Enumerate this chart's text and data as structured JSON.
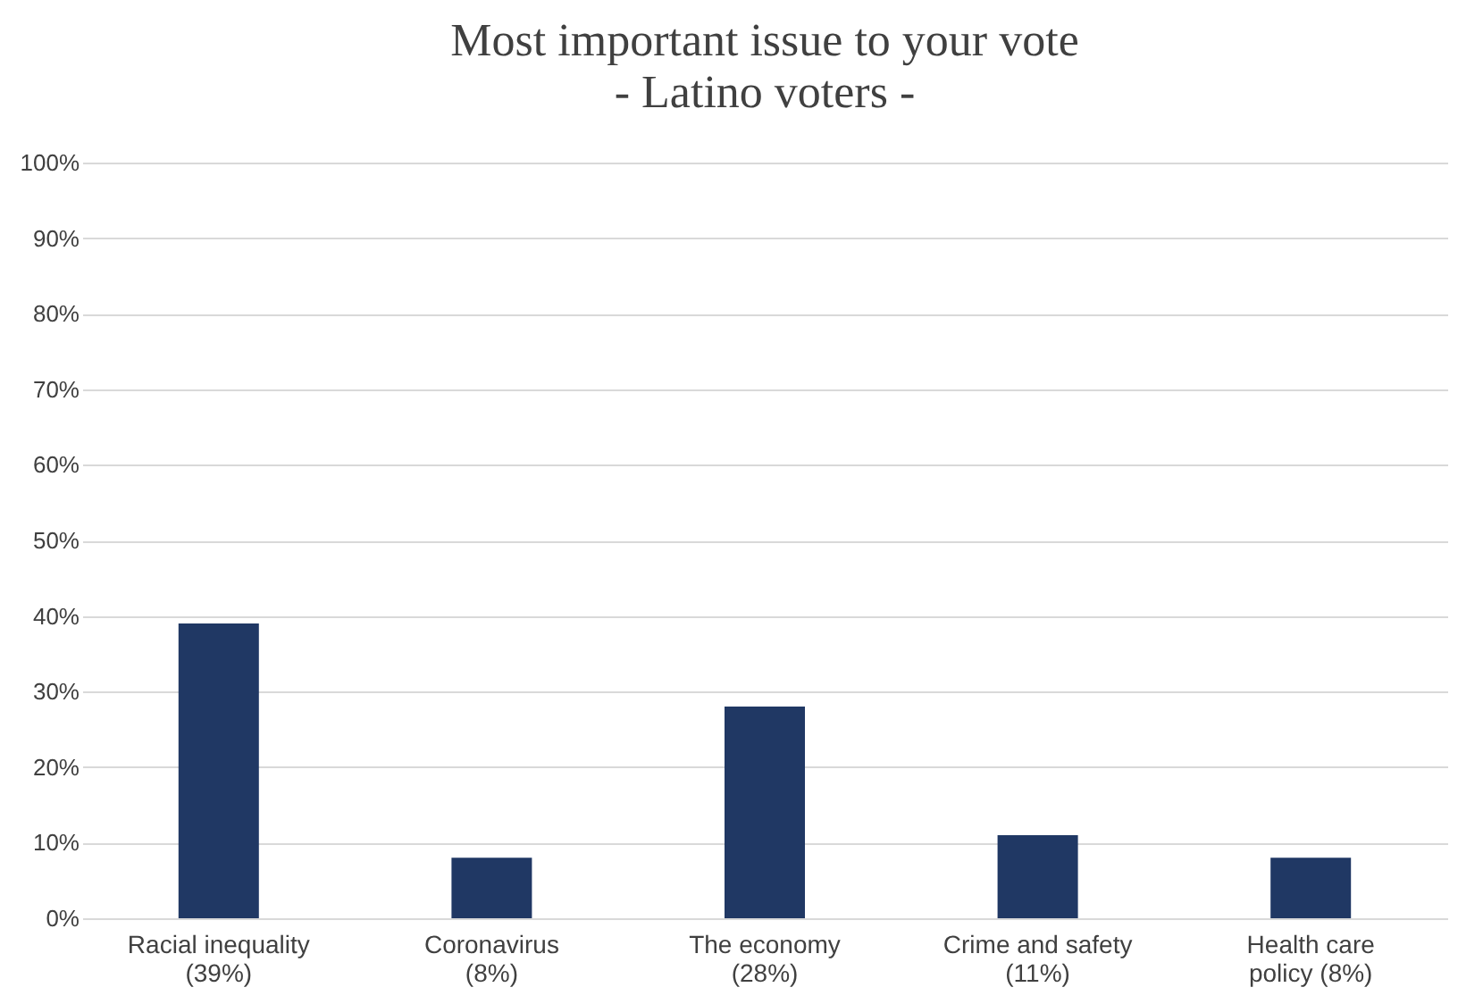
{
  "chart_data": {
    "type": "bar",
    "title": "Most important issue to your vote",
    "subtitle": "- Latino voters -",
    "categories": [
      "Racial inequality\n(39%)",
      "Coronavirus\n(8%)",
      "The economy\n(28%)",
      "Crime and safety\n(11%)",
      "Health care\npolicy (8%)"
    ],
    "values": [
      39,
      8,
      28,
      11,
      8
    ],
    "color": "#203864",
    "ylim": [
      0,
      100
    ],
    "yticks": [
      {
        "value": 0,
        "label": "0%"
      },
      {
        "value": 10,
        "label": "10%"
      },
      {
        "value": 20,
        "label": "20%"
      },
      {
        "value": 30,
        "label": "30%"
      },
      {
        "value": 40,
        "label": "40%"
      },
      {
        "value": 50,
        "label": "50%"
      },
      {
        "value": 60,
        "label": "60%"
      },
      {
        "value": 70,
        "label": "70%"
      },
      {
        "value": 80,
        "label": "80%"
      },
      {
        "value": 90,
        "label": "90%"
      },
      {
        "value": 100,
        "label": "100%"
      }
    ],
    "grid": "y"
  }
}
